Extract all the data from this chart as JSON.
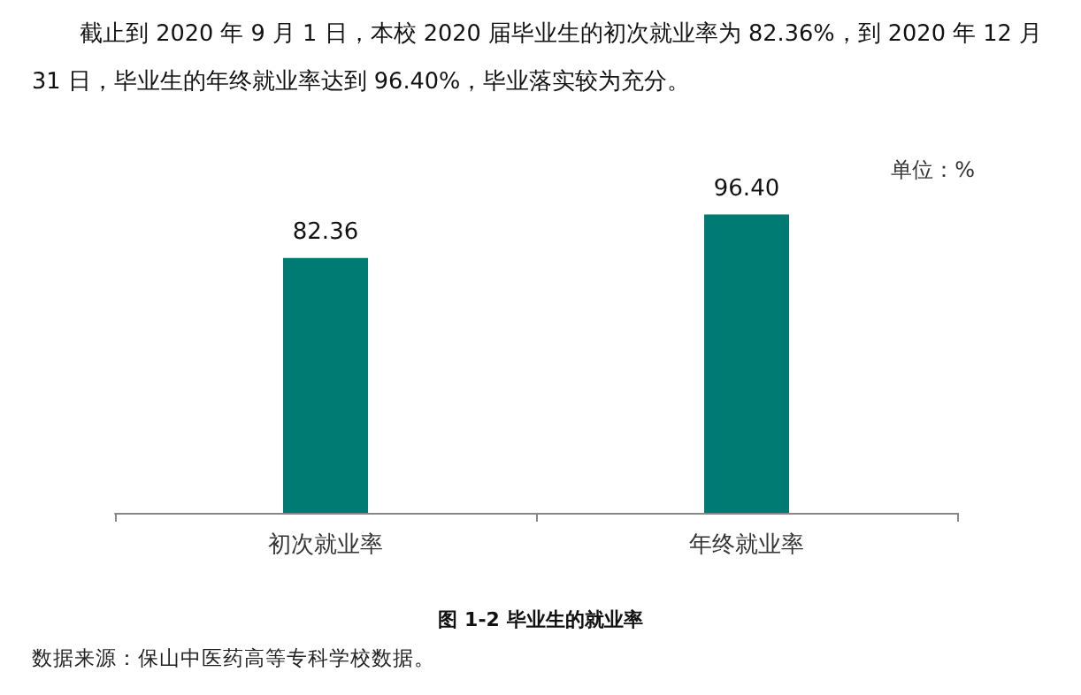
{
  "chart_data": {
    "type": "bar",
    "title": "图 1-2  毕业生的就业率",
    "subtitle": "截止到 2020 年 9 月 1 日，本校 2020 届毕业生的初次就业率为 82.36%，到 2020 年 12 月 31 日，毕业生的年终就业率达到 96.40%，毕业落实较为充分。",
    "ylabel": "单位：%",
    "annotations": [
      "数据来源：保山中医药高等专科学校数据。"
    ],
    "categories": [
      "初次就业率",
      "年终就业率"
    ],
    "values": [
      82.36,
      96.4
    ],
    "value_labels": [
      "82.36",
      "96.40"
    ],
    "color": "#007b73",
    "tick_labels": "x"
  }
}
